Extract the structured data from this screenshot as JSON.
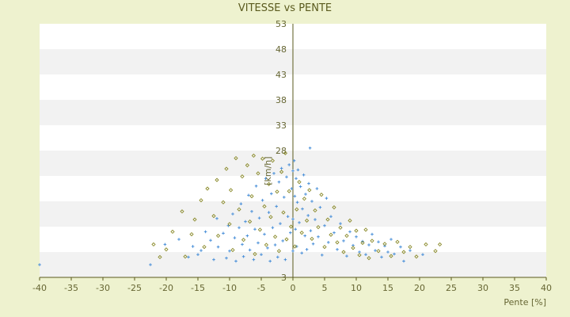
{
  "chart_data": {
    "type": "scatter",
    "title": "VITESSE vs PENTE",
    "xlabel": "Pente [%]",
    "ylabel": "[km/h]",
    "xlim": [
      -40,
      40
    ],
    "ylim": [
      3,
      53
    ],
    "x_ticks": [
      -40,
      -35,
      -30,
      -25,
      -20,
      -15,
      -10,
      -5,
      0,
      5,
      10,
      15,
      20,
      25,
      30,
      35,
      40
    ],
    "y_ticks": [
      3,
      8,
      13,
      18,
      23,
      28,
      33,
      38,
      43,
      48,
      53
    ],
    "y_tick_labels": [
      "3",
      "",
      "",
      "",
      "",
      "28",
      "33",
      "38",
      "43",
      "48",
      "53"
    ],
    "grid": "horizontal-bands",
    "series": [
      {
        "color": "#4a90d9",
        "marker": "cross",
        "points": [
          [
            -40,
            5.5
          ],
          [
            -22.5,
            5.5
          ],
          [
            -20.2,
            9.5
          ],
          [
            -18,
            10.5
          ],
          [
            -16.5,
            7
          ],
          [
            -15.8,
            9.1
          ],
          [
            -15,
            7.5
          ],
          [
            -14.5,
            8.3
          ],
          [
            -13.8,
            12
          ],
          [
            -13,
            10.3
          ],
          [
            -12.5,
            6.5
          ],
          [
            -12,
            14.6
          ],
          [
            -11.8,
            9
          ],
          [
            -11,
            11.7
          ],
          [
            -10.5,
            6.8
          ],
          [
            -10.2,
            13.2
          ],
          [
            -10,
            8.2
          ],
          [
            -9.5,
            15.5
          ],
          [
            -9.2,
            10.8
          ],
          [
            -9,
            6.2
          ],
          [
            -8.5,
            12.8
          ],
          [
            -8.2,
            17.5
          ],
          [
            -8,
            9.5
          ],
          [
            -7.8,
            7.1
          ],
          [
            -7.5,
            14
          ],
          [
            -7.2,
            11.2
          ],
          [
            -7,
            19.2
          ],
          [
            -6.8,
            8.4
          ],
          [
            -6.5,
            16
          ],
          [
            -6.2,
            6.5
          ],
          [
            -6,
            12.5
          ],
          [
            -5.8,
            21
          ],
          [
            -5.5,
            9.8
          ],
          [
            -5.3,
            14.7
          ],
          [
            -5,
            7.5
          ],
          [
            -4.8,
            18.2
          ],
          [
            -4.5,
            11.5
          ],
          [
            -4.3,
            22.5
          ],
          [
            -4,
            8.8
          ],
          [
            -3.8,
            15.8
          ],
          [
            -3.6,
            6.2
          ],
          [
            -3.4,
            19.5
          ],
          [
            -3.2,
            12.8
          ],
          [
            -3,
            23.5
          ],
          [
            -2.8,
            9.4
          ],
          [
            -2.6,
            17
          ],
          [
            -2.4,
            7
          ],
          [
            -2.2,
            21.8
          ],
          [
            -2,
            13.6
          ],
          [
            -1.8,
            24.5
          ],
          [
            -1.6,
            10.2
          ],
          [
            -1.4,
            18.8
          ],
          [
            -1.2,
            6.5
          ],
          [
            -1,
            22.8
          ],
          [
            -0.8,
            15
          ],
          [
            -0.6,
            25.2
          ],
          [
            -0.4,
            11.8
          ],
          [
            -0.2,
            20.5
          ],
          [
            0,
            24
          ],
          [
            0,
            14.5
          ],
          [
            0,
            8.2
          ],
          [
            0.2,
            26
          ],
          [
            0.3,
            19
          ],
          [
            0.4,
            12.5
          ],
          [
            0.5,
            22.5
          ],
          [
            0.6,
            9.1
          ],
          [
            0.7,
            17.8
          ],
          [
            0.8,
            24.2
          ],
          [
            1,
            13.8
          ],
          [
            1.2,
            20.9
          ],
          [
            1.4,
            7.8
          ],
          [
            1.5,
            16.5
          ],
          [
            1.7,
            23.2
          ],
          [
            1.9,
            11.2
          ],
          [
            2,
            19.4
          ],
          [
            2.2,
            8.5
          ],
          [
            2.4,
            15.2
          ],
          [
            2.5,
            21.5
          ],
          [
            2.7,
            28.5
          ],
          [
            2.8,
            12.2
          ],
          [
            3,
            18
          ],
          [
            3.2,
            9.6
          ],
          [
            3.5,
            14.4
          ],
          [
            3.8,
            20.5
          ],
          [
            4,
            11
          ],
          [
            4.3,
            16.8
          ],
          [
            4.6,
            7.4
          ],
          [
            5,
            13.2
          ],
          [
            5.3,
            18.6
          ],
          [
            5.6,
            9.9
          ],
          [
            6,
            15
          ],
          [
            6.5,
            11.8
          ],
          [
            7,
            8.5
          ],
          [
            7.5,
            13.6
          ],
          [
            8,
            10.2
          ],
          [
            8.5,
            7.2
          ],
          [
            9,
            12
          ],
          [
            9.5,
            9.3
          ],
          [
            10,
            11
          ],
          [
            10.5,
            8
          ],
          [
            11,
            10.1
          ],
          [
            11.5,
            7.5
          ],
          [
            12,
            9.4
          ],
          [
            12.5,
            11.5
          ],
          [
            13,
            8.3
          ],
          [
            13.5,
            10
          ],
          [
            14,
            7
          ],
          [
            14.5,
            9.2
          ],
          [
            15,
            8
          ],
          [
            15.5,
            10.5
          ],
          [
            16,
            7.6
          ],
          [
            17,
            9
          ],
          [
            17.5,
            6.2
          ],
          [
            18.5,
            8.3
          ],
          [
            20.5,
            7.5
          ]
        ]
      },
      {
        "color": "#8a8a2a",
        "marker": "diamond",
        "points": [
          [
            -22,
            9.5
          ],
          [
            -21,
            7
          ],
          [
            -20,
            8.5
          ],
          [
            -19,
            12
          ],
          [
            -17.5,
            16
          ],
          [
            -17,
            7.1
          ],
          [
            -16,
            11.5
          ],
          [
            -15.5,
            14.4
          ],
          [
            -14.5,
            18.2
          ],
          [
            -14,
            9
          ],
          [
            -13.5,
            20.5
          ],
          [
            -12.5,
            15.1
          ],
          [
            -12,
            22.2
          ],
          [
            -11.8,
            11.2
          ],
          [
            -11,
            17.8
          ],
          [
            -10.5,
            24.4
          ],
          [
            -10,
            13.5
          ],
          [
            -9.8,
            20.2
          ],
          [
            -9.5,
            8.4
          ],
          [
            -9,
            26.5
          ],
          [
            -8.5,
            16.4
          ],
          [
            -8,
            22.9
          ],
          [
            -7.8,
            10.4
          ],
          [
            -7.2,
            25.1
          ],
          [
            -6.8,
            14
          ],
          [
            -6.5,
            19
          ],
          [
            -6.2,
            27
          ],
          [
            -6,
            7.6
          ],
          [
            -5.5,
            23.5
          ],
          [
            -5.2,
            12.4
          ],
          [
            -4.8,
            26.4
          ],
          [
            -4.5,
            17
          ],
          [
            -4.2,
            9.4
          ],
          [
            -3.8,
            21.4
          ],
          [
            -3.5,
            14.9
          ],
          [
            -3.2,
            26
          ],
          [
            -2.8,
            11
          ],
          [
            -2.5,
            19.9
          ],
          [
            -2.2,
            8.2
          ],
          [
            -1.8,
            23.8
          ],
          [
            -1.5,
            15.8
          ],
          [
            -1.2,
            27.5
          ],
          [
            -1,
            10.5
          ],
          [
            -0.6,
            20
          ],
          [
            -0.3,
            13
          ],
          [
            0.3,
            9.1
          ],
          [
            0.6,
            16.4
          ],
          [
            1,
            21.8
          ],
          [
            1.4,
            11.8
          ],
          [
            1.8,
            18.5
          ],
          [
            2.2,
            14.2
          ],
          [
            2.6,
            20.2
          ],
          [
            3,
            10.6
          ],
          [
            3.5,
            16.2
          ],
          [
            4,
            12.9
          ],
          [
            4.5,
            19.3
          ],
          [
            5,
            9
          ],
          [
            5.5,
            14.4
          ],
          [
            6,
            11.4
          ],
          [
            6.5,
            16.8
          ],
          [
            7,
            9.9
          ],
          [
            7.5,
            12.8
          ],
          [
            8,
            8
          ],
          [
            8.5,
            11.2
          ],
          [
            9,
            14.2
          ],
          [
            9.5,
            8.8
          ],
          [
            10,
            12.2
          ],
          [
            10.5,
            7.4
          ],
          [
            11,
            9.8
          ],
          [
            11.5,
            12.4
          ],
          [
            12,
            6.8
          ],
          [
            12.5,
            10.2
          ],
          [
            13.5,
            8.2
          ],
          [
            14.5,
            9.6
          ],
          [
            15.5,
            7.2
          ],
          [
            16.5,
            10
          ],
          [
            17.5,
            8
          ],
          [
            18.5,
            9
          ],
          [
            19.5,
            7.1
          ],
          [
            21,
            9.5
          ],
          [
            22.5,
            8.2
          ],
          [
            23.2,
            9.5
          ]
        ]
      }
    ]
  }
}
